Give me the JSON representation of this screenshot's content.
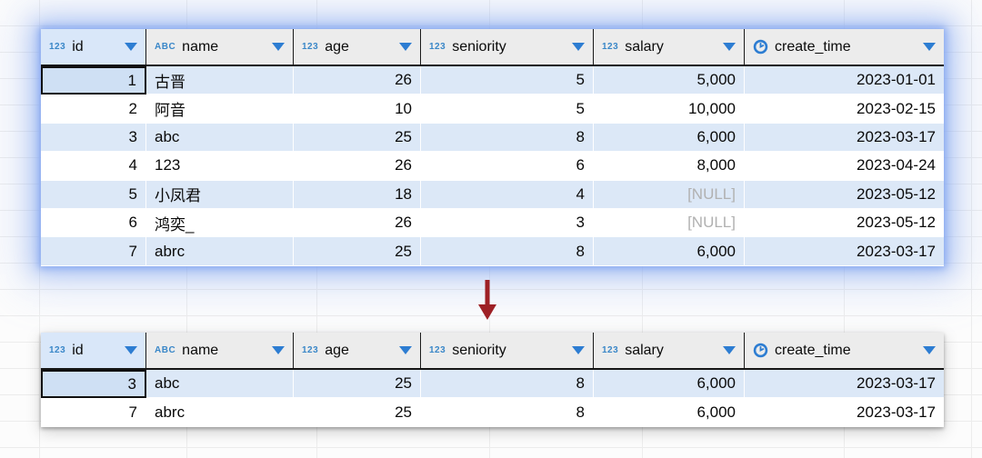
{
  "grid": {
    "null_text": "[NULL]",
    "columns": [
      {
        "label": "id",
        "type_badge": "123",
        "icon": "numeric-type-icon",
        "align": "right"
      },
      {
        "label": "name",
        "type_badge": "ABC",
        "icon": "text-type-icon",
        "align": "left"
      },
      {
        "label": "age",
        "type_badge": "123",
        "icon": "numeric-type-icon",
        "align": "right"
      },
      {
        "label": "seniority",
        "type_badge": "123",
        "icon": "numeric-type-icon",
        "align": "right"
      },
      {
        "label": "salary",
        "type_badge": "123",
        "icon": "numeric-type-icon",
        "align": "right"
      },
      {
        "label": "create_time",
        "type_badge": "clock",
        "icon": "clock-type-icon",
        "align": "right"
      }
    ]
  },
  "tables": [
    {
      "name": "original-result-grid",
      "selected": {
        "row": 0,
        "column": 0
      },
      "rows": [
        [
          "1",
          "古晋",
          "26",
          "5",
          "5,000",
          "2023-01-01"
        ],
        [
          "2",
          "阿音",
          "10",
          "5",
          "10,000",
          "2023-02-15"
        ],
        [
          "3",
          "abc",
          "25",
          "8",
          "6,000",
          "2023-03-17"
        ],
        [
          "4",
          "123",
          "26",
          "6",
          "8,000",
          "2023-04-24"
        ],
        [
          "5",
          "小凤君",
          "18",
          "4",
          "[NULL]",
          "2023-05-12"
        ],
        [
          "6",
          "鸿奕_",
          "26",
          "3",
          "[NULL]",
          "2023-05-12"
        ],
        [
          "7",
          "abrc",
          "25",
          "8",
          "6,000",
          "2023-03-17"
        ]
      ]
    },
    {
      "name": "filtered-result-grid",
      "selected": {
        "row": 0,
        "column": 0
      },
      "rows": [
        [
          "3",
          "abc",
          "25",
          "8",
          "6,000",
          "2023-03-17"
        ],
        [
          "7",
          "abrc",
          "25",
          "8",
          "6,000",
          "2023-03-17"
        ]
      ]
    }
  ],
  "arrow": {
    "direction": "down",
    "color": "#9e2025"
  },
  "colors": {
    "type_badge_blue": "#3a87c8",
    "dropdown_triangle_blue": "#2d7dd2",
    "row_stripe_blue": "#dce8f7",
    "selected_cell_blue": "#cfe0f4",
    "selection_glow_blue": "#84a6f0",
    "null_text_gray": "#b1b1b1"
  }
}
